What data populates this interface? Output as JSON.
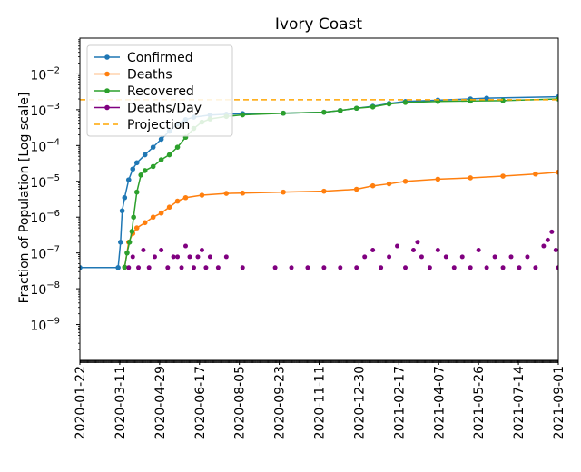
{
  "chart_data": {
    "type": "line",
    "title": "Ivory Coast",
    "ylabel": "Fraction of Population [Log scale]",
    "xlabel": "",
    "yscale": "log",
    "ylim": [
      1e-10,
      0.1
    ],
    "xlim": [
      "2020-01-22",
      "2021-09-01"
    ],
    "x_ticks": [
      "2020-01-22",
      "2020-03-11",
      "2020-04-29",
      "2020-06-17",
      "2020-08-05",
      "2020-09-23",
      "2020-11-11",
      "2020-12-30",
      "2021-02-17",
      "2021-04-07",
      "2021-05-26",
      "2021-07-14",
      "2021-09-01"
    ],
    "y_ticks": [
      {
        "value": 1e-09,
        "base": "10",
        "exp": "−9"
      },
      {
        "value": 1e-08,
        "base": "10",
        "exp": "−8"
      },
      {
        "value": 1e-07,
        "base": "10",
        "exp": "−7"
      },
      {
        "value": 1e-06,
        "base": "10",
        "exp": "−6"
      },
      {
        "value": 1e-05,
        "base": "10",
        "exp": "−5"
      },
      {
        "value": 0.0001,
        "base": "10",
        "exp": "−4"
      },
      {
        "value": 0.001,
        "base": "10",
        "exp": "−3"
      },
      {
        "value": 0.01,
        "base": "10",
        "exp": "−2"
      }
    ],
    "legend_position": "top-left",
    "series": [
      {
        "name": "Confirmed",
        "color": "#1f77b4",
        "style": "line-markers",
        "points": [
          [
            0,
            3.9e-08
          ],
          [
            47,
            3.9e-08
          ],
          [
            50,
            2e-07
          ],
          [
            52,
            1.5e-06
          ],
          [
            55,
            3.5e-06
          ],
          [
            60,
            1.1e-05
          ],
          [
            65,
            2.2e-05
          ],
          [
            70,
            3.3e-05
          ],
          [
            80,
            5.5e-05
          ],
          [
            90,
            9e-05
          ],
          [
            100,
            0.00015
          ],
          [
            110,
            0.00025
          ],
          [
            120,
            0.0004
          ],
          [
            130,
            0.00053
          ],
          [
            140,
            0.00062
          ],
          [
            160,
            0.00071
          ],
          [
            180,
            0.00075
          ],
          [
            200,
            0.00078
          ],
          [
            250,
            0.0008
          ],
          [
            300,
            0.00085
          ],
          [
            320,
            0.00095
          ],
          [
            340,
            0.0011
          ],
          [
            360,
            0.00125
          ],
          [
            380,
            0.0015
          ],
          [
            400,
            0.0017
          ],
          [
            440,
            0.00185
          ],
          [
            480,
            0.002
          ],
          [
            500,
            0.0021
          ],
          [
            588,
            0.0023
          ]
        ]
      },
      {
        "name": "Deaths",
        "color": "#ff7f0e",
        "style": "line-markers",
        "points": [
          [
            55,
            4e-08
          ],
          [
            60,
            2e-07
          ],
          [
            65,
            3.5e-07
          ],
          [
            70,
            5e-07
          ],
          [
            80,
            7e-07
          ],
          [
            90,
            1e-06
          ],
          [
            100,
            1.3e-06
          ],
          [
            110,
            1.9e-06
          ],
          [
            120,
            2.8e-06
          ],
          [
            130,
            3.5e-06
          ],
          [
            150,
            4.1e-06
          ],
          [
            180,
            4.6e-06
          ],
          [
            200,
            4.7e-06
          ],
          [
            250,
            5e-06
          ],
          [
            300,
            5.3e-06
          ],
          [
            340,
            6e-06
          ],
          [
            360,
            7.5e-06
          ],
          [
            380,
            8.5e-06
          ],
          [
            400,
            1e-05
          ],
          [
            440,
            1.15e-05
          ],
          [
            480,
            1.25e-05
          ],
          [
            520,
            1.4e-05
          ],
          [
            560,
            1.6e-05
          ],
          [
            588,
            1.8e-05
          ]
        ]
      },
      {
        "name": "Recovered",
        "color": "#2ca02c",
        "style": "line-markers",
        "points": [
          [
            55,
            4e-08
          ],
          [
            58,
            1e-07
          ],
          [
            61,
            2e-07
          ],
          [
            64,
            4e-07
          ],
          [
            66,
            1e-06
          ],
          [
            70,
            5e-06
          ],
          [
            75,
            1.5e-05
          ],
          [
            80,
            2e-05
          ],
          [
            90,
            2.6e-05
          ],
          [
            100,
            4e-05
          ],
          [
            110,
            5.5e-05
          ],
          [
            120,
            9e-05
          ],
          [
            130,
            0.00017
          ],
          [
            140,
            0.0003
          ],
          [
            150,
            0.00045
          ],
          [
            160,
            0.00055
          ],
          [
            180,
            0.00065
          ],
          [
            200,
            0.00072
          ],
          [
            250,
            0.0008
          ],
          [
            300,
            0.00085
          ],
          [
            320,
            0.00095
          ],
          [
            340,
            0.0011
          ],
          [
            360,
            0.0012
          ],
          [
            380,
            0.00145
          ],
          [
            400,
            0.0016
          ],
          [
            440,
            0.0017
          ],
          [
            480,
            0.00175
          ],
          [
            520,
            0.0018
          ],
          [
            588,
            0.002
          ]
        ]
      },
      {
        "name": "Deaths/Day",
        "color": "#800080",
        "style": "markers",
        "points": [
          [
            60,
            3.9e-08
          ],
          [
            65,
            7.8e-08
          ],
          [
            72,
            3.9e-08
          ],
          [
            78,
            1.2e-07
          ],
          [
            85,
            3.9e-08
          ],
          [
            92,
            7.8e-08
          ],
          [
            100,
            1.2e-07
          ],
          [
            108,
            3.9e-08
          ],
          [
            115,
            7.8e-08
          ],
          [
            120,
            7.8e-08
          ],
          [
            125,
            3.9e-08
          ],
          [
            130,
            1.56e-07
          ],
          [
            135,
            7.8e-08
          ],
          [
            140,
            3.9e-08
          ],
          [
            145,
            7.8e-08
          ],
          [
            150,
            1.2e-07
          ],
          [
            155,
            3.9e-08
          ],
          [
            160,
            7.8e-08
          ],
          [
            170,
            3.9e-08
          ],
          [
            180,
            7.8e-08
          ],
          [
            200,
            3.9e-08
          ],
          [
            240,
            3.9e-08
          ],
          [
            260,
            3.9e-08
          ],
          [
            280,
            3.9e-08
          ],
          [
            300,
            3.9e-08
          ],
          [
            320,
            3.9e-08
          ],
          [
            340,
            3.9e-08
          ],
          [
            350,
            7.8e-08
          ],
          [
            360,
            1.2e-07
          ],
          [
            370,
            3.9e-08
          ],
          [
            380,
            7.8e-08
          ],
          [
            390,
            1.56e-07
          ],
          [
            400,
            3.9e-08
          ],
          [
            410,
            1.2e-07
          ],
          [
            415,
            2e-07
          ],
          [
            420,
            7.8e-08
          ],
          [
            430,
            3.9e-08
          ],
          [
            440,
            1.2e-07
          ],
          [
            450,
            7.8e-08
          ],
          [
            460,
            3.9e-08
          ],
          [
            470,
            7.8e-08
          ],
          [
            480,
            3.9e-08
          ],
          [
            490,
            1.2e-07
          ],
          [
            500,
            3.9e-08
          ],
          [
            510,
            7.8e-08
          ],
          [
            520,
            3.9e-08
          ],
          [
            530,
            7.8e-08
          ],
          [
            540,
            3.9e-08
          ],
          [
            550,
            7.8e-08
          ],
          [
            560,
            3.9e-08
          ],
          [
            570,
            1.56e-07
          ],
          [
            575,
            2.3e-07
          ],
          [
            580,
            3.9e-07
          ],
          [
            585,
            1.2e-07
          ],
          [
            588,
            3.9e-08
          ]
        ]
      },
      {
        "name": "Projection",
        "color": "#ffa500",
        "style": "dashed",
        "points": [
          [
            0,
            0.0019
          ],
          [
            588,
            0.0019
          ]
        ]
      }
    ]
  }
}
